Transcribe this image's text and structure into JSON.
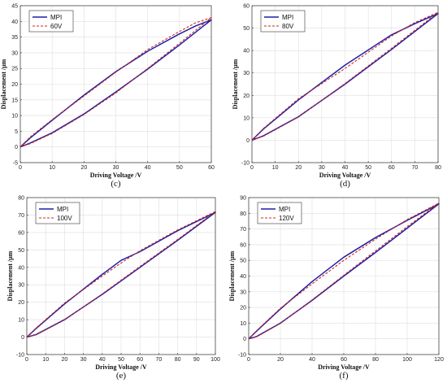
{
  "chart_data": [
    {
      "type": "line",
      "caption": "(c)",
      "xlabel": "Driving Voltage  /V",
      "ylabel": "Displacement  /μm",
      "xlim": [
        0,
        60
      ],
      "ylim": [
        -5,
        45
      ],
      "xticks": [
        0,
        10,
        20,
        30,
        40,
        50,
        60
      ],
      "yticks": [
        -5,
        0,
        5,
        10,
        15,
        20,
        25,
        30,
        35,
        40,
        45
      ],
      "grid": true,
      "legend_position": "top-left",
      "series": [
        {
          "name": "MPI",
          "color": "#1f1fa8",
          "style": "solid",
          "x": [
            0,
            3,
            10,
            20,
            30,
            40,
            50,
            60,
            55,
            50,
            40,
            30,
            20,
            10,
            3,
            0
          ],
          "y": [
            0,
            1.2,
            4.5,
            10.5,
            17.5,
            24.8,
            32.5,
            40.5,
            38.5,
            36.0,
            30.5,
            24.0,
            16.5,
            8.5,
            2.8,
            0
          ]
        },
        {
          "name": "60V",
          "color": "#cc2a1e",
          "style": "dashed",
          "x": [
            0,
            3,
            10,
            20,
            30,
            40,
            50,
            60,
            55,
            50,
            40,
            30,
            20,
            10,
            3,
            0
          ],
          "y": [
            0,
            1.0,
            4.3,
            10.3,
            17.2,
            25.0,
            33.0,
            41.2,
            39.5,
            36.8,
            31.0,
            23.8,
            16.2,
            8.7,
            3.1,
            0
          ]
        }
      ]
    },
    {
      "type": "line",
      "caption": "(d)",
      "xlabel": "Driving Voltage  /V",
      "ylabel": "Displacement  /μm",
      "xlim": [
        0,
        80
      ],
      "ylim": [
        -10,
        60
      ],
      "xticks": [
        0,
        10,
        20,
        30,
        40,
        50,
        60,
        70,
        80
      ],
      "yticks": [
        -10,
        0,
        10,
        20,
        30,
        40,
        50,
        60
      ],
      "grid": true,
      "legend_position": "top-left",
      "series": [
        {
          "name": "MPI",
          "color": "#1f1fa8",
          "style": "solid",
          "x": [
            0,
            5,
            20,
            40,
            60,
            80,
            70,
            60,
            40,
            20,
            5,
            0
          ],
          "y": [
            0,
            2.0,
            10.5,
            25.0,
            40.5,
            56.5,
            52.0,
            47.0,
            33.5,
            18.0,
            5.0,
            0
          ]
        },
        {
          "name": "80V",
          "color": "#cc2a1e",
          "style": "dashed",
          "x": [
            0,
            5,
            20,
            40,
            60,
            80,
            70,
            60,
            40,
            20,
            5,
            0
          ],
          "y": [
            0,
            1.8,
            10.3,
            25.3,
            41.0,
            57.0,
            52.5,
            46.5,
            32.0,
            18.5,
            5.3,
            0
          ]
        }
      ]
    },
    {
      "type": "line",
      "caption": "(e)",
      "xlabel": "Driving Voltage  /V",
      "ylabel": "Displacement  /μm",
      "xlim": [
        0,
        100
      ],
      "ylim": [
        -10,
        80
      ],
      "xticks": [
        0,
        10,
        20,
        30,
        40,
        50,
        60,
        70,
        80,
        90,
        100
      ],
      "yticks": [
        -10,
        0,
        10,
        20,
        30,
        40,
        50,
        60,
        70,
        80
      ],
      "grid": true,
      "legend_position": "top-left",
      "series": [
        {
          "name": "MPI",
          "color": "#1f1fa8",
          "style": "solid",
          "x": [
            0,
            5,
            20,
            40,
            60,
            80,
            100,
            80,
            60,
            50,
            40,
            20,
            5,
            0
          ],
          "y": [
            0,
            1.5,
            10.0,
            24.5,
            40.0,
            55.5,
            71.5,
            61.0,
            49.0,
            44.0,
            36.0,
            19.0,
            5.0,
            0
          ]
        },
        {
          "name": "100V",
          "color": "#cc2a1e",
          "style": "dashed",
          "x": [
            0,
            5,
            20,
            40,
            60,
            80,
            100,
            80,
            60,
            50,
            40,
            20,
            5,
            0
          ],
          "y": [
            0,
            1.3,
            9.8,
            24.8,
            40.5,
            56.0,
            72.0,
            61.5,
            49.5,
            42.5,
            35.0,
            19.5,
            5.3,
            0
          ]
        }
      ]
    },
    {
      "type": "line",
      "caption": "(f)",
      "xlabel": "Driving Voltage  /V",
      "ylabel": "Displacement  /μm",
      "xlim": [
        0,
        120
      ],
      "ylim": [
        -10,
        90
      ],
      "xticks": [
        0,
        20,
        40,
        60,
        80,
        100,
        120
      ],
      "yticks": [
        -10,
        0,
        10,
        20,
        30,
        40,
        50,
        60,
        70,
        80,
        90
      ],
      "grid": true,
      "legend_position": "top-left",
      "series": [
        {
          "name": "MPI",
          "color": "#1f1fa8",
          "style": "solid",
          "x": [
            0,
            5,
            20,
            40,
            60,
            80,
            100,
            120,
            100,
            80,
            60,
            40,
            20,
            5,
            0
          ],
          "y": [
            0,
            1.5,
            10.0,
            24.5,
            40.0,
            55.0,
            70.5,
            86.0,
            75.5,
            64.5,
            52.0,
            36.5,
            19.0,
            5.0,
            0
          ]
        },
        {
          "name": "120V",
          "color": "#cc2a1e",
          "style": "dashed",
          "x": [
            0,
            5,
            20,
            40,
            60,
            80,
            100,
            120,
            100,
            80,
            60,
            40,
            20,
            5,
            0
          ],
          "y": [
            0,
            1.3,
            9.8,
            24.8,
            40.5,
            56.0,
            71.5,
            86.5,
            76.0,
            63.5,
            50.0,
            35.0,
            19.5,
            5.3,
            0
          ]
        }
      ]
    }
  ]
}
